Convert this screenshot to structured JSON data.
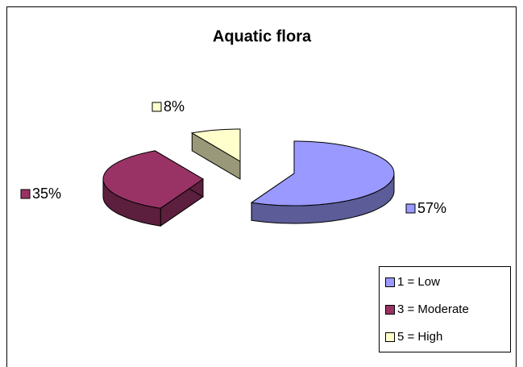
{
  "chart_data": {
    "type": "pie3d",
    "title": "Aquatic flora",
    "categories": [
      "1 = Low",
      "3 = Moderate",
      "5 = High"
    ],
    "values": [
      57,
      35,
      8
    ],
    "value_labels": [
      "57%",
      "35%",
      "8%"
    ],
    "colors": [
      "#9999ff",
      "#993366",
      "#ffffcc"
    ],
    "legend": "bottom-right"
  }
}
